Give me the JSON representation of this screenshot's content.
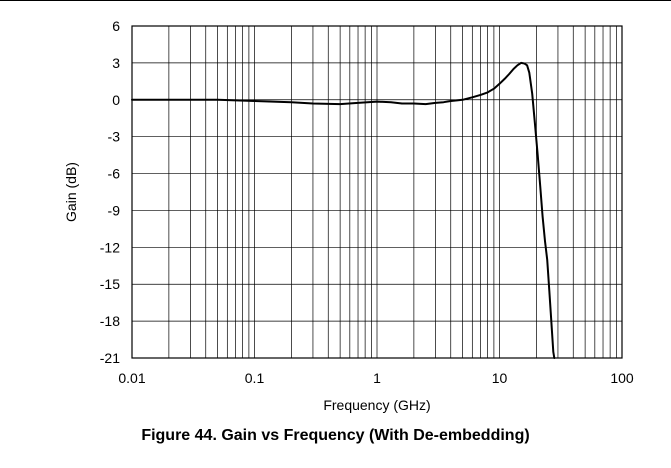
{
  "figure": {
    "caption": "Figure 44. Gain vs Frequency (With De-embedding)"
  },
  "chart_data": {
    "type": "line",
    "title": "",
    "xlabel": "Frequency (GHz)",
    "ylabel": "Gain (dB)",
    "xscale": "log",
    "xlim": [
      0.01,
      100
    ],
    "ylim": [
      -21,
      6
    ],
    "x_ticks": [
      "0.01",
      "0.1",
      "1",
      "10",
      "100"
    ],
    "y_ticks": [
      "6",
      "3",
      "0",
      "-3",
      "-6",
      "-9",
      "-12",
      "-15",
      "-18",
      "-21"
    ],
    "grid": true,
    "line_color": "#000000",
    "series": [
      {
        "x": [
          0.01,
          0.02,
          0.05,
          0.1,
          0.2,
          0.3,
          0.5,
          0.7,
          1.0,
          1.3,
          1.6,
          2.0,
          2.5,
          3.0,
          3.5,
          4.0,
          4.5,
          5.0,
          6.0,
          7.0,
          8.0,
          9.0,
          10.0,
          11.0,
          12.0,
          13.0,
          14.0,
          15.0,
          16.0,
          16.8,
          17.5,
          18.5,
          19.5,
          20.5,
          21.5,
          22.5,
          23.5,
          24.5,
          25.5,
          26.5,
          27.5,
          28.0
        ],
        "y": [
          0.0,
          0.0,
          0.0,
          -0.1,
          -0.2,
          -0.3,
          -0.35,
          -0.25,
          -0.15,
          -0.2,
          -0.3,
          -0.3,
          -0.35,
          -0.25,
          -0.2,
          -0.1,
          -0.05,
          0.0,
          0.2,
          0.4,
          0.6,
          0.9,
          1.3,
          1.7,
          2.1,
          2.5,
          2.8,
          3.0,
          2.95,
          2.8,
          2.2,
          0.5,
          -2.0,
          -4.5,
          -7.0,
          -9.5,
          -11.5,
          -13.0,
          -15.5,
          -18.0,
          -20.5,
          -21.0
        ]
      }
    ]
  }
}
